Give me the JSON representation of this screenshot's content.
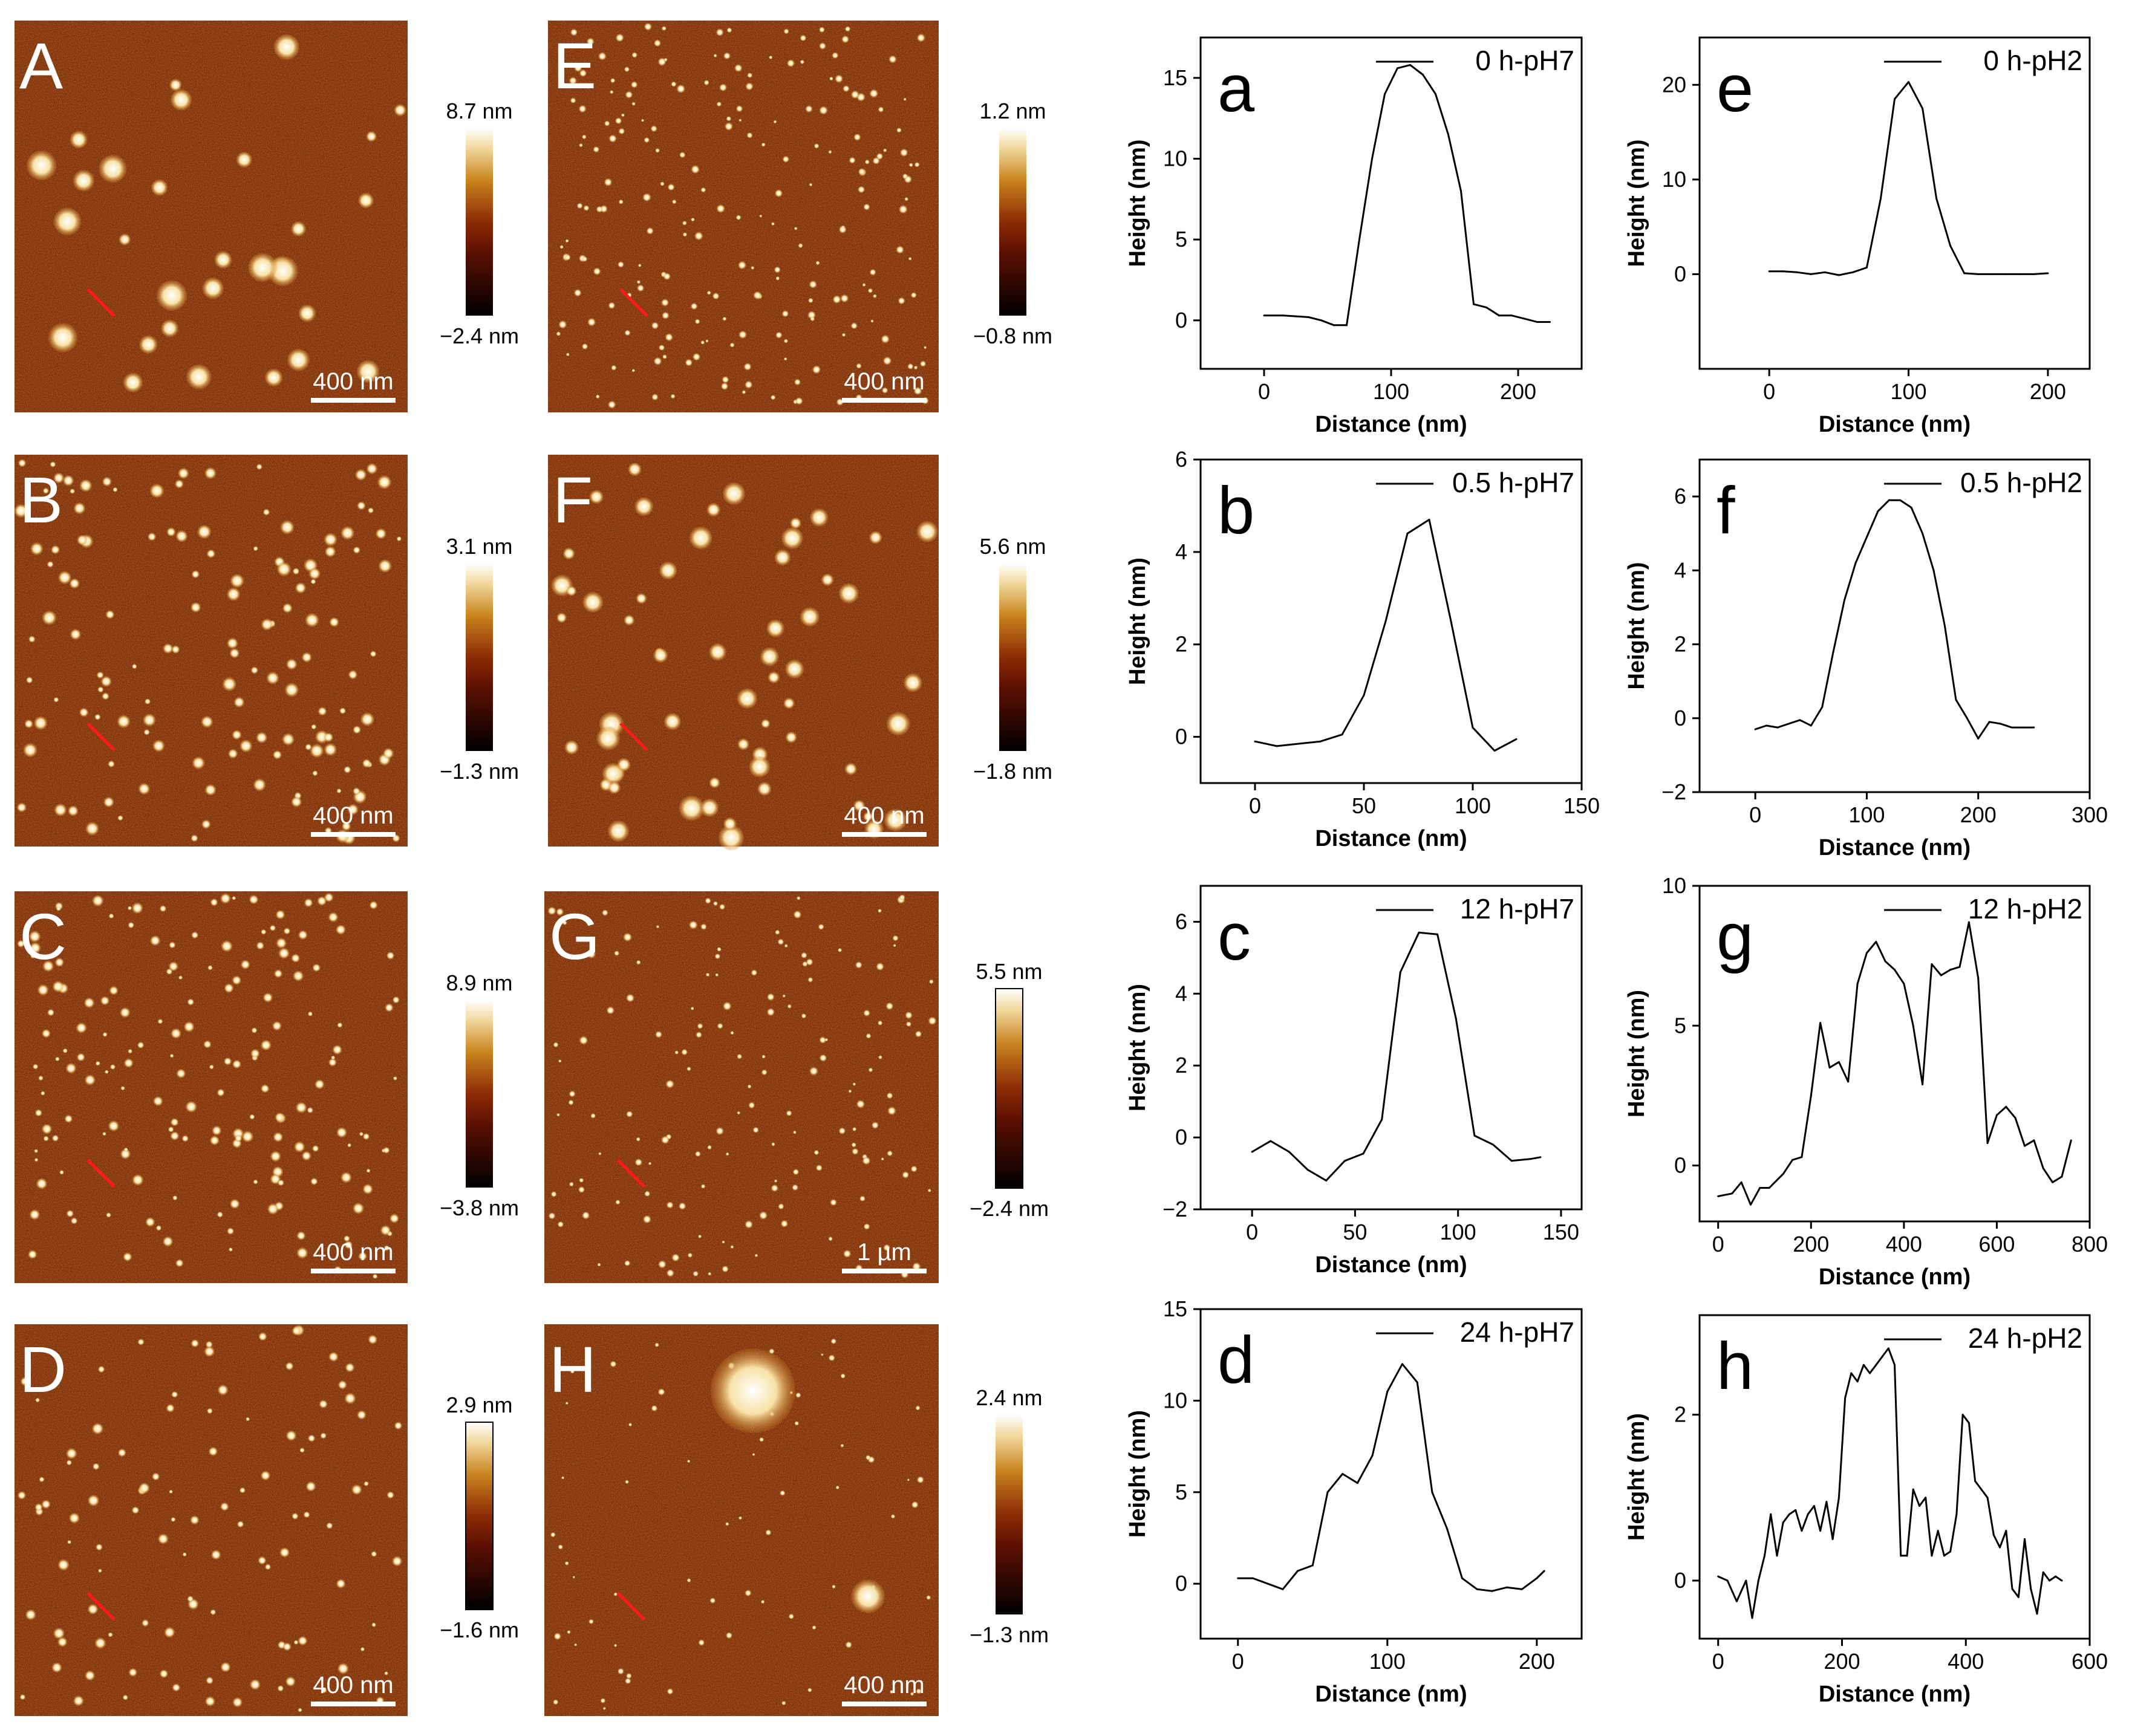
{
  "afm_panels": [
    {
      "letter": "A",
      "scale_label": "400 nm",
      "cbar_max": "8.7 nm",
      "cbar_min": "−2.4 nm"
    },
    {
      "letter": "B",
      "scale_label": "400 nm",
      "cbar_max": "3.1 nm",
      "cbar_min": "−1.3 nm"
    },
    {
      "letter": "C",
      "scale_label": "400 nm",
      "cbar_max": "8.9 nm",
      "cbar_min": "−3.8 nm"
    },
    {
      "letter": "D",
      "scale_label": "400 nm",
      "cbar_max": "2.9 nm",
      "cbar_min": "−1.6 nm"
    },
    {
      "letter": "E",
      "scale_label": "400 nm",
      "cbar_max": "1.2 nm",
      "cbar_min": "−0.8 nm"
    },
    {
      "letter": "F",
      "scale_label": "400 nm",
      "cbar_max": "5.6 nm",
      "cbar_min": "−1.8 nm"
    },
    {
      "letter": "G",
      "scale_label": "1 µm",
      "cbar_max": "5.5 nm",
      "cbar_min": "−2.4 nm"
    },
    {
      "letter": "H",
      "scale_label": "400 nm",
      "cbar_max": "2.4 nm",
      "cbar_min": "−1.3 nm"
    }
  ],
  "chart_data": [
    {
      "type": "line",
      "panel": "a",
      "legend": "0 h-pH7",
      "xlabel": "Distance (nm)",
      "ylabel": "Height (nm)",
      "xlim": [
        -50,
        250
      ],
      "ylim": [
        -3,
        17.5
      ],
      "xticks": [
        0,
        100,
        200
      ],
      "yticks": [
        0,
        5,
        10,
        15
      ],
      "x": [
        0,
        15,
        25,
        35,
        45,
        55,
        65,
        75,
        85,
        95,
        105,
        115,
        125,
        135,
        145,
        155,
        165,
        175,
        185,
        195,
        205,
        215,
        225
      ],
      "y": [
        0.3,
        0.3,
        0.25,
        0.2,
        0.0,
        -0.3,
        -0.3,
        5.0,
        10.0,
        14.0,
        15.6,
        15.8,
        15.2,
        14.0,
        11.5,
        8.0,
        1.0,
        0.8,
        0.3,
        0.3,
        0.1,
        -0.1,
        -0.1
      ]
    },
    {
      "type": "line",
      "panel": "e",
      "legend": "0 h-pH2",
      "xlabel": "Distance (nm)",
      "ylabel": "Height (nm)",
      "xlim": [
        -50,
        230
      ],
      "ylim": [
        -10,
        25
      ],
      "xticks": [
        0,
        100,
        200
      ],
      "yticks": [
        0,
        10,
        20
      ],
      "x": [
        0,
        10,
        20,
        30,
        40,
        50,
        60,
        70,
        80,
        90,
        100,
        110,
        120,
        130,
        140,
        150,
        160,
        170,
        180,
        190,
        200
      ],
      "y": [
        0.3,
        0.3,
        0.2,
        0.0,
        0.2,
        -0.1,
        0.2,
        0.7,
        8.0,
        18.5,
        20.3,
        17.5,
        8.0,
        3.0,
        0.1,
        0.0,
        0.0,
        0.0,
        0.0,
        0.0,
        0.1
      ]
    },
    {
      "type": "line",
      "panel": "b",
      "legend": "0.5 h-pH7",
      "xlabel": "Distance (nm)",
      "ylabel": "Height (nm)",
      "xlim": [
        -25,
        150
      ],
      "ylim": [
        -1,
        6
      ],
      "xticks": [
        0,
        50,
        100,
        150
      ],
      "yticks": [
        0,
        2,
        4,
        6
      ],
      "x": [
        0,
        10,
        20,
        30,
        40,
        50,
        60,
        70,
        80,
        90,
        100,
        110,
        120
      ],
      "y": [
        -0.1,
        -0.2,
        -0.15,
        -0.1,
        0.05,
        0.9,
        2.5,
        4.4,
        4.7,
        2.5,
        0.2,
        -0.3,
        -0.05
      ]
    },
    {
      "type": "line",
      "panel": "f",
      "legend": "0.5 h-pH2",
      "xlabel": "Distance (nm)",
      "ylabel": "Height (nm)",
      "xlim": [
        -50,
        300
      ],
      "ylim": [
        -2,
        7
      ],
      "xticks": [
        0,
        100,
        200,
        300
      ],
      "yticks": [
        -2,
        0,
        2,
        4,
        6
      ],
      "x": [
        0,
        10,
        20,
        30,
        40,
        50,
        60,
        70,
        80,
        90,
        100,
        110,
        120,
        130,
        140,
        150,
        160,
        170,
        180,
        190,
        200,
        210,
        220,
        230,
        240,
        250
      ],
      "y": [
        -0.3,
        -0.2,
        -0.25,
        -0.15,
        -0.05,
        -0.2,
        0.3,
        1.8,
        3.2,
        4.2,
        4.9,
        5.6,
        5.9,
        5.9,
        5.7,
        5.0,
        4.0,
        2.5,
        0.5,
        0.0,
        -0.55,
        -0.1,
        -0.15,
        -0.25,
        -0.25,
        -0.25
      ]
    },
    {
      "type": "line",
      "panel": "c",
      "legend": "12 h-pH7",
      "xlabel": "Distance (nm)",
      "ylabel": "Height (nm)",
      "xlim": [
        -25,
        160
      ],
      "ylim": [
        -2,
        7
      ],
      "xticks": [
        0,
        50,
        100,
        150
      ],
      "yticks": [
        -2,
        0,
        2,
        4,
        6
      ],
      "x": [
        0,
        9,
        18,
        27,
        36,
        45,
        54,
        63,
        72,
        81,
        90,
        99,
        108,
        117,
        126,
        135,
        140
      ],
      "y": [
        -0.4,
        -0.1,
        -0.4,
        -0.9,
        -1.2,
        -0.65,
        -0.45,
        0.5,
        4.6,
        5.7,
        5.65,
        3.3,
        0.05,
        -0.2,
        -0.65,
        -0.6,
        -0.55
      ]
    },
    {
      "type": "line",
      "panel": "g",
      "legend": "12 h-pH2",
      "xlabel": "Distance (nm)",
      "ylabel": "Height (nm)",
      "xlim": [
        -40,
        800
      ],
      "ylim": [
        -2,
        10
      ],
      "xticks": [
        0,
        200,
        400,
        600,
        800
      ],
      "yticks": [
        0,
        5,
        10
      ],
      "x": [
        0,
        30,
        50,
        70,
        90,
        110,
        140,
        160,
        180,
        200,
        220,
        240,
        260,
        280,
        300,
        320,
        340,
        360,
        380,
        400,
        420,
        440,
        460,
        480,
        500,
        520,
        540,
        560,
        580,
        600,
        620,
        640,
        660,
        680,
        700,
        720,
        740,
        760
      ],
      "y": [
        -1.1,
        -1.0,
        -0.6,
        -1.4,
        -0.8,
        -0.8,
        -0.3,
        0.2,
        0.3,
        2.5,
        5.1,
        3.5,
        3.7,
        3.0,
        6.5,
        7.6,
        8.0,
        7.3,
        7.0,
        6.5,
        5.0,
        2.9,
        7.2,
        6.8,
        7.0,
        7.1,
        8.7,
        6.7,
        0.8,
        1.8,
        2.1,
        1.7,
        0.7,
        0.9,
        -0.1,
        -0.6,
        -0.4,
        0.9
      ]
    },
    {
      "type": "line",
      "panel": "d",
      "legend": "24 h-pH7",
      "xlabel": "Distance (nm)",
      "ylabel": "Height (nm)",
      "xlim": [
        -25,
        230
      ],
      "ylim": [
        -3,
        15
      ],
      "xticks": [
        0,
        100,
        200
      ],
      "yticks": [
        0,
        5,
        10,
        15
      ],
      "x": [
        0,
        10,
        20,
        30,
        40,
        50,
        60,
        70,
        80,
        90,
        100,
        110,
        120,
        130,
        140,
        150,
        160,
        170,
        180,
        190,
        200,
        205
      ],
      "y": [
        0.3,
        0.3,
        0.0,
        -0.3,
        0.7,
        1.0,
        5.0,
        6.0,
        5.5,
        7.0,
        10.5,
        12.0,
        11.0,
        5.0,
        3.0,
        0.3,
        -0.3,
        -0.4,
        -0.2,
        -0.3,
        0.3,
        0.7
      ]
    },
    {
      "type": "line",
      "panel": "h",
      "legend": "24 h-pH2",
      "xlabel": "Distance (nm)",
      "ylabel": "Height (nm)",
      "xlim": [
        -30,
        600
      ],
      "ylim": [
        -0.7,
        3.2
      ],
      "xticks": [
        0,
        200,
        400,
        600
      ],
      "yticks": [
        0,
        2
      ],
      "x": [
        0,
        15,
        30,
        45,
        55,
        65,
        75,
        85,
        95,
        105,
        115,
        125,
        135,
        145,
        155,
        165,
        175,
        185,
        195,
        205,
        215,
        225,
        235,
        245,
        255,
        265,
        275,
        285,
        295,
        305,
        315,
        325,
        335,
        345,
        355,
        365,
        375,
        385,
        395,
        405,
        415,
        425,
        435,
        445,
        455,
        465,
        475,
        485,
        495,
        505,
        515,
        525,
        535,
        545,
        555
      ],
      "y": [
        0.05,
        0.0,
        -0.25,
        0.0,
        -0.45,
        0.0,
        0.3,
        0.8,
        0.3,
        0.7,
        0.8,
        0.85,
        0.6,
        0.8,
        0.9,
        0.6,
        0.95,
        0.5,
        1.0,
        2.2,
        2.5,
        2.4,
        2.6,
        2.5,
        2.6,
        2.7,
        2.8,
        2.6,
        0.3,
        0.3,
        1.1,
        0.9,
        1.0,
        0.3,
        0.6,
        0.3,
        0.35,
        0.8,
        2.0,
        1.9,
        1.2,
        1.1,
        1.0,
        0.55,
        0.4,
        0.6,
        -0.1,
        -0.2,
        0.5,
        -0.1,
        -0.4,
        0.1,
        0.0,
        0.05,
        0.0
      ]
    }
  ]
}
